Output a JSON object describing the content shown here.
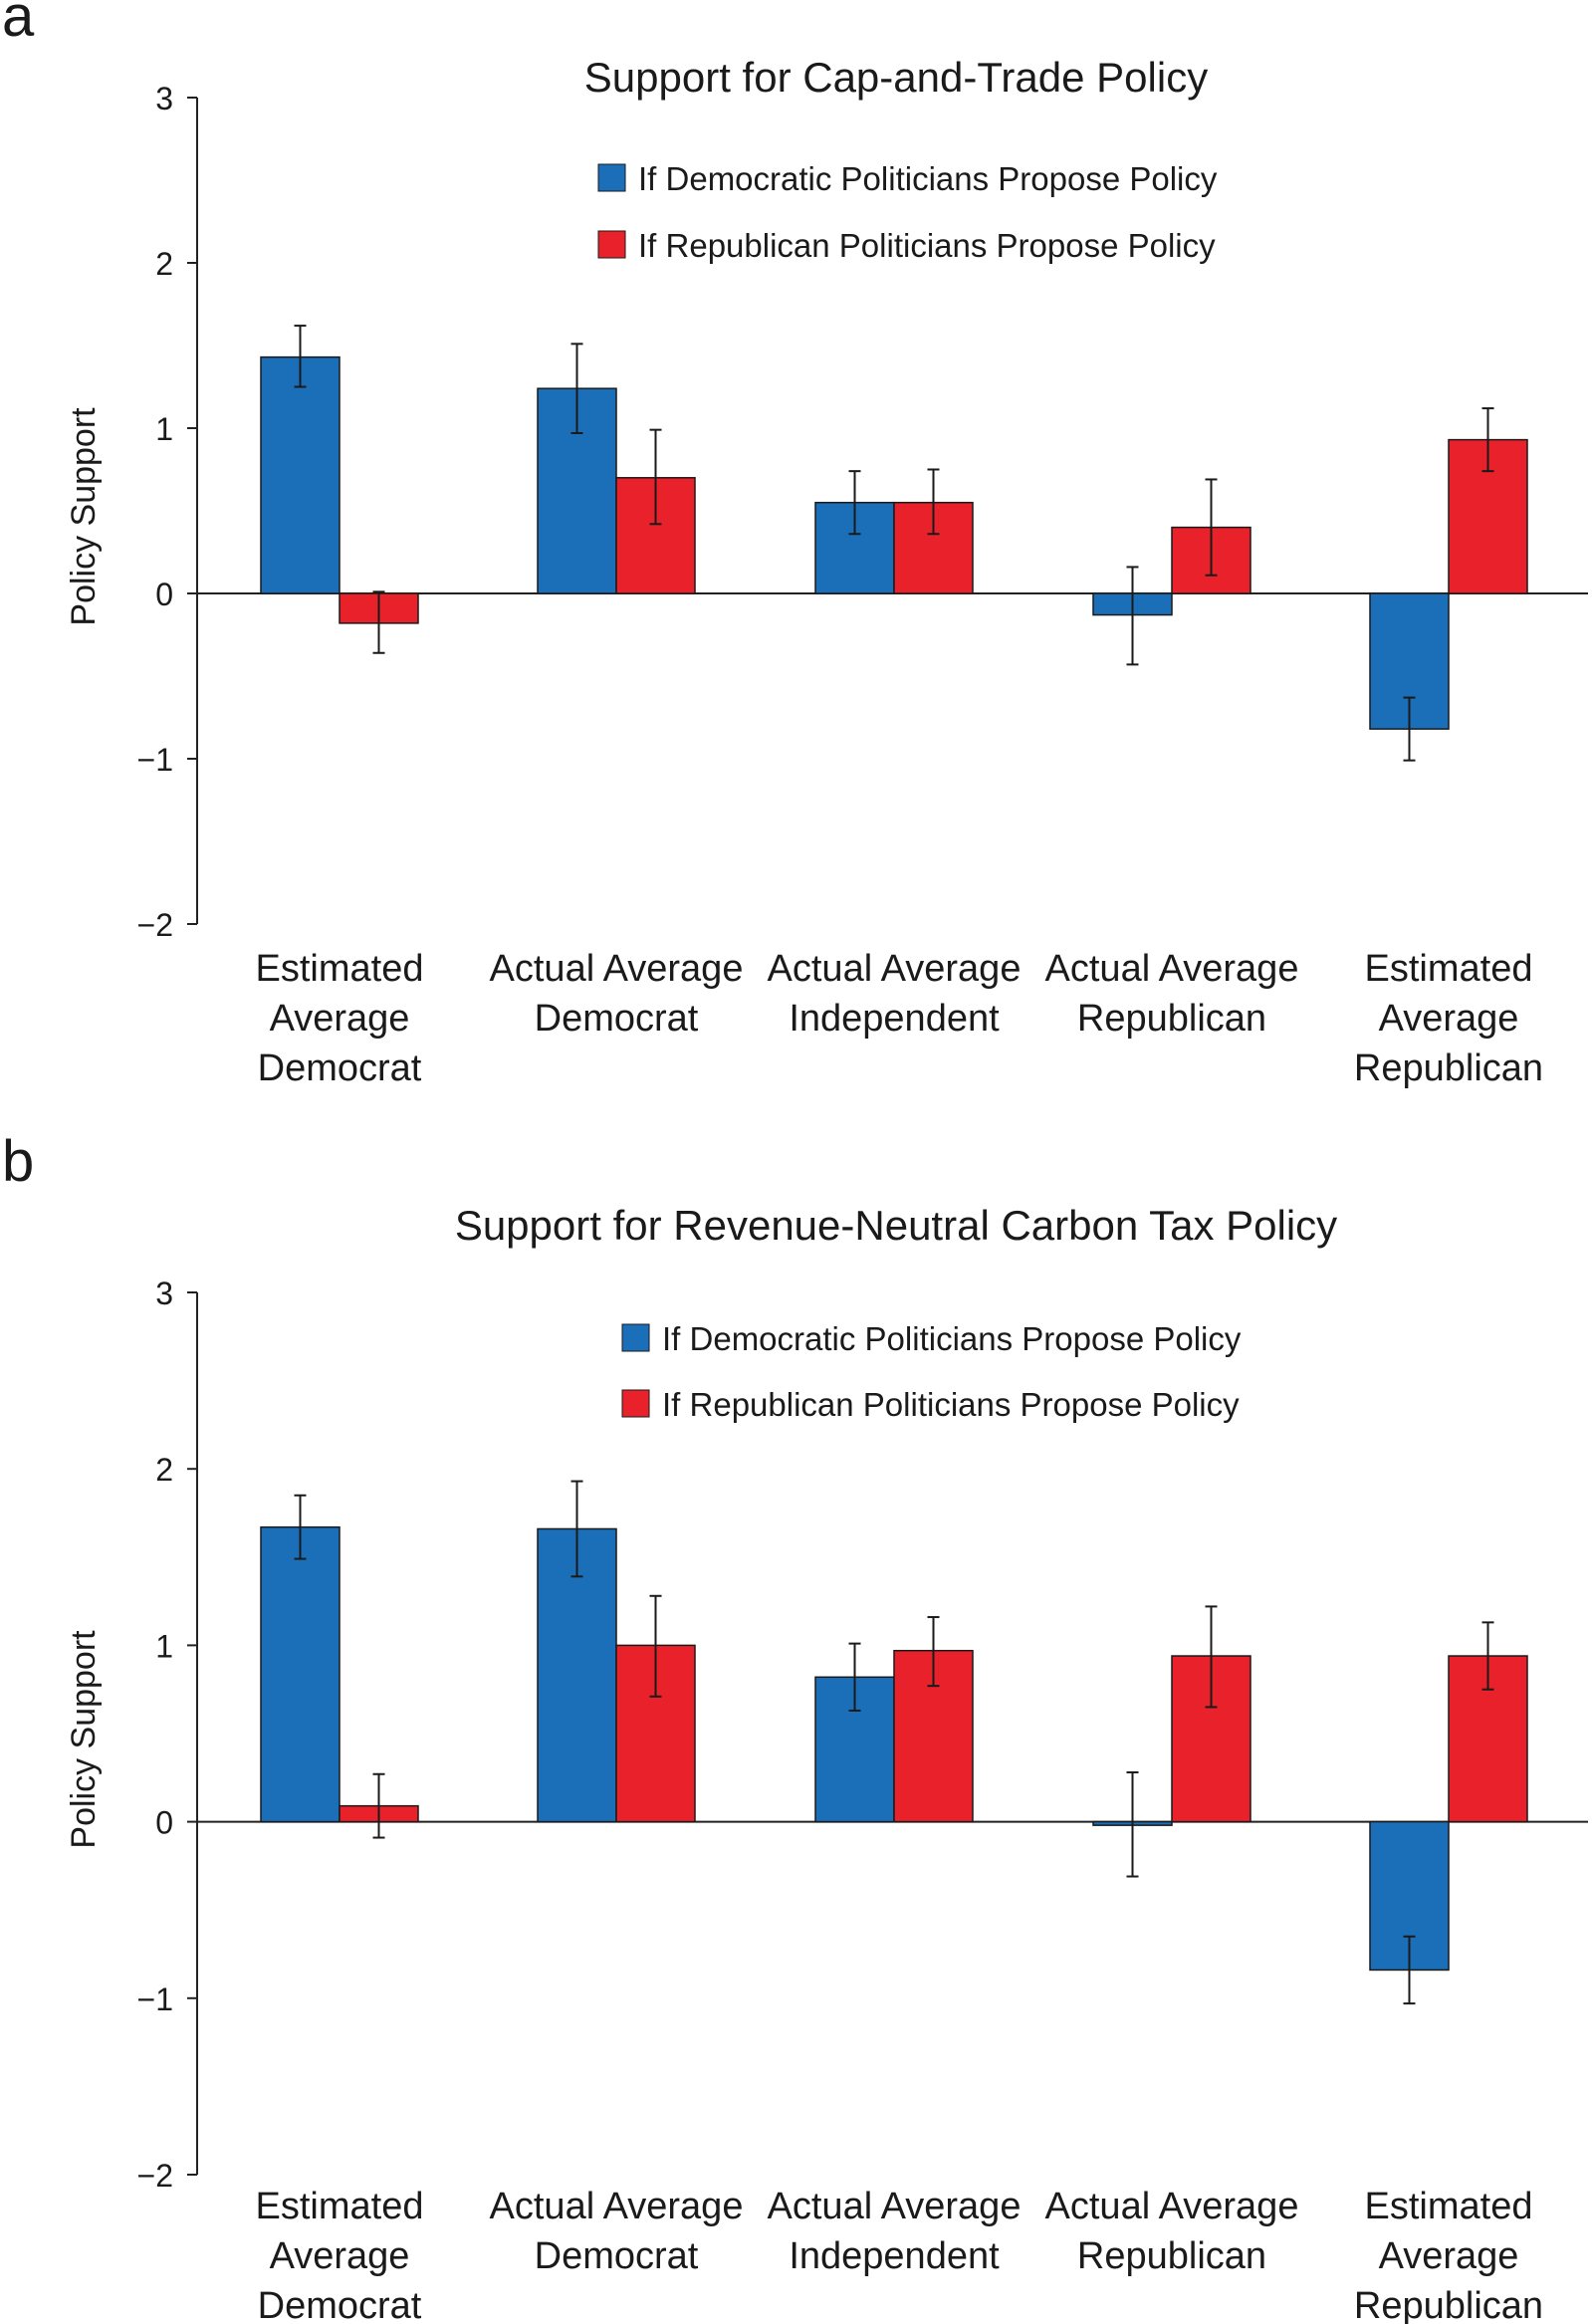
{
  "colors": {
    "democratic": "#1a6fb8",
    "republican": "#e8212b",
    "axis": "#222222"
  },
  "chart_data": [
    {
      "panel_label": "a",
      "type": "bar",
      "title": "Support for Cap-and-Trade Policy",
      "ylabel": "Policy Support",
      "ylim": [
        -2,
        3
      ],
      "yticks": [
        3,
        2,
        1,
        0,
        -1,
        -2
      ],
      "ytick_labels": [
        "3",
        "2",
        "1",
        "0",
        "−1",
        "−2"
      ],
      "legend_placement": "top-center",
      "categories": [
        [
          "Estimated",
          "Average",
          "Democrat"
        ],
        [
          "Actual Average",
          "Democrat"
        ],
        [
          "Actual Average",
          "Independent"
        ],
        [
          "Actual Average",
          "Republican"
        ],
        [
          "Estimated",
          "Average",
          "Republican"
        ]
      ],
      "series": [
        {
          "name": "If Democratic Politicians Propose Policy",
          "color": "#1a6fb8",
          "values": [
            1.43,
            1.24,
            0.55,
            -0.13,
            -0.82
          ],
          "err_low": [
            1.25,
            0.97,
            0.36,
            -0.43,
            -1.01
          ],
          "err_high": [
            1.62,
            1.51,
            0.74,
            0.16,
            -0.63
          ]
        },
        {
          "name": "If Republican Politicians Propose Policy",
          "color": "#e8212b",
          "values": [
            -0.18,
            0.7,
            0.55,
            0.4,
            0.93
          ],
          "err_low": [
            -0.36,
            0.42,
            0.36,
            0.11,
            0.74
          ],
          "err_high": [
            0.01,
            0.99,
            0.75,
            0.69,
            1.12
          ]
        }
      ]
    },
    {
      "panel_label": "b",
      "type": "bar",
      "title": "Support for Revenue-Neutral Carbon Tax Policy",
      "ylabel": "Policy Support",
      "ylim": [
        -2,
        3
      ],
      "yticks": [
        3,
        2,
        1,
        0,
        -1,
        -2
      ],
      "ytick_labels": [
        "3",
        "2",
        "1",
        "0",
        "−1",
        "−2"
      ],
      "legend_placement": "top-center",
      "categories": [
        [
          "Estimated",
          "Average",
          "Democrat"
        ],
        [
          "Actual Average",
          "Democrat"
        ],
        [
          "Actual Average",
          "Independent"
        ],
        [
          "Actual Average",
          "Republican"
        ],
        [
          "Estimated",
          "Average",
          "Republican"
        ]
      ],
      "series": [
        {
          "name": "If Democratic Politicians Propose Policy",
          "color": "#1a6fb8",
          "values": [
            1.67,
            1.66,
            0.82,
            -0.02,
            -0.84
          ],
          "err_low": [
            1.49,
            1.39,
            0.63,
            -0.31,
            -1.03
          ],
          "err_high": [
            1.85,
            1.93,
            1.01,
            0.28,
            -0.65
          ]
        },
        {
          "name": "If Republican Politicians Propose Policy",
          "color": "#e8212b",
          "values": [
            0.09,
            1.0,
            0.97,
            0.94,
            0.94
          ],
          "err_low": [
            -0.09,
            0.71,
            0.77,
            0.65,
            0.75
          ],
          "err_high": [
            0.27,
            1.28,
            1.16,
            1.22,
            1.13
          ]
        }
      ]
    }
  ]
}
